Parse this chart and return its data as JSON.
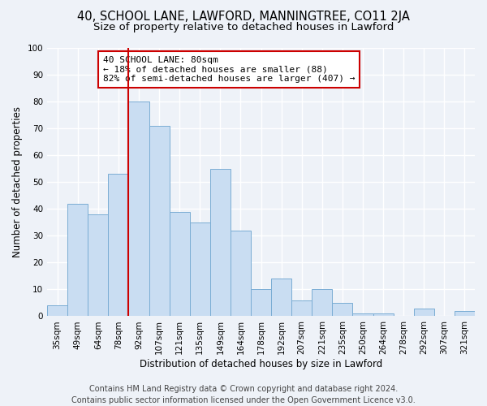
{
  "title1": "40, SCHOOL LANE, LAWFORD, MANNINGTREE, CO11 2JA",
  "title2": "Size of property relative to detached houses in Lawford",
  "xlabel": "Distribution of detached houses by size in Lawford",
  "ylabel": "Number of detached properties",
  "bar_labels": [
    "35sqm",
    "49sqm",
    "64sqm",
    "78sqm",
    "92sqm",
    "107sqm",
    "121sqm",
    "135sqm",
    "149sqm",
    "164sqm",
    "178sqm",
    "192sqm",
    "207sqm",
    "221sqm",
    "235sqm",
    "250sqm",
    "264sqm",
    "278sqm",
    "292sqm",
    "307sqm",
    "321sqm"
  ],
  "bar_values": [
    4,
    42,
    38,
    53,
    80,
    71,
    39,
    35,
    55,
    32,
    10,
    14,
    6,
    10,
    5,
    1,
    1,
    0,
    3,
    0,
    2
  ],
  "bar_color": "#c9ddf2",
  "bar_edge_color": "#7aadd4",
  "vline_index": 3.5,
  "vline_color": "#cc0000",
  "ylim": [
    0,
    100
  ],
  "yticks": [
    0,
    10,
    20,
    30,
    40,
    50,
    60,
    70,
    80,
    90,
    100
  ],
  "annotation_text": "40 SCHOOL LANE: 80sqm\n← 18% of detached houses are smaller (88)\n82% of semi-detached houses are larger (407) →",
  "annotation_box_facecolor": "#ffffff",
  "annotation_box_edgecolor": "#cc0000",
  "footer1": "Contains HM Land Registry data © Crown copyright and database right 2024.",
  "footer2": "Contains public sector information licensed under the Open Government Licence v3.0.",
  "bg_color": "#eef2f8",
  "grid_color": "#ffffff",
  "title1_fontsize": 10.5,
  "title2_fontsize": 9.5,
  "xlabel_fontsize": 8.5,
  "ylabel_fontsize": 8.5,
  "tick_fontsize": 7.5,
  "annot_fontsize": 8,
  "footer_fontsize": 7
}
